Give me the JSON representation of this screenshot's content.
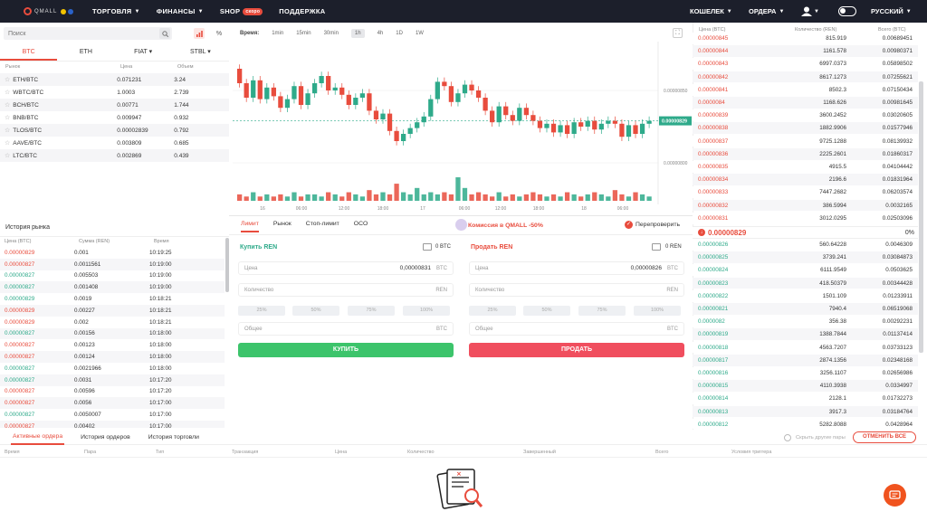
{
  "nav": {
    "logo_text": "QMALL",
    "items": [
      {
        "label": "ТОРГОВЛЯ",
        "caret": true
      },
      {
        "label": "ФИНАНСЫ",
        "caret": true
      },
      {
        "label": "SHOP",
        "badge": "скоро"
      },
      {
        "label": "ПОДДЕРЖКА"
      }
    ],
    "right": {
      "wallet": "КОШЕЛЕК",
      "orders": "ОРДЕРА",
      "language": "РУССКИЙ"
    }
  },
  "market": {
    "search_placeholder": "Поиск",
    "percent_label": "%",
    "tabs": [
      "BTC",
      "ETH",
      "FIAT ▾",
      "STBL ▾"
    ],
    "active_tab": 0,
    "headers": {
      "pair": "Рынок",
      "price": "Цена",
      "volume": "Объем"
    },
    "pairs": [
      {
        "pair": "ETH/BTC",
        "price": "0.071231",
        "volume": "3.24"
      },
      {
        "pair": "WBTC/BTC",
        "price": "1.0003",
        "volume": "2.739"
      },
      {
        "pair": "BCH/BTC",
        "price": "0.00771",
        "volume": "1.744"
      },
      {
        "pair": "BNB/BTC",
        "price": "0.009947",
        "volume": "0.932"
      },
      {
        "pair": "TLOS/BTC",
        "price": "0.00002839",
        "volume": "0.792"
      },
      {
        "pair": "AAVE/BTC",
        "price": "0.003809",
        "volume": "0.685"
      },
      {
        "pair": "LTC/BTC",
        "price": "0.002869",
        "volume": "0.439"
      }
    ]
  },
  "history": {
    "title": "История рынка",
    "headers": {
      "price": "Цена (BTC)",
      "amount": "Сумма (REN)",
      "time": "Время"
    },
    "rows": [
      {
        "price": "0.00000829",
        "amount": "0.001",
        "time": "10:19:25",
        "side": "sell"
      },
      {
        "price": "0.00000827",
        "amount": "0.0011561",
        "time": "10:19:00",
        "side": "sell"
      },
      {
        "price": "0.00000827",
        "amount": "0.005503",
        "time": "10:19:00",
        "side": "buy"
      },
      {
        "price": "0.00000827",
        "amount": "0.001408",
        "time": "10:19:00",
        "side": "buy"
      },
      {
        "price": "0.00000829",
        "amount": "0.0019",
        "time": "10:18:21",
        "side": "buy"
      },
      {
        "price": "0.00000829",
        "amount": "0.00227",
        "time": "10:18:21",
        "side": "sell"
      },
      {
        "price": "0.00000829",
        "amount": "0.002",
        "time": "10:18:21",
        "side": "sell"
      },
      {
        "price": "0.00000827",
        "amount": "0.00156",
        "time": "10:18:00",
        "side": "buy"
      },
      {
        "price": "0.00000827",
        "amount": "0.00123",
        "time": "10:18:00",
        "side": "sell"
      },
      {
        "price": "0.00000827",
        "amount": "0.00124",
        "time": "10:18:00",
        "side": "sell"
      },
      {
        "price": "0.00000827",
        "amount": "0.0021966",
        "time": "10:18:00",
        "side": "buy"
      },
      {
        "price": "0.00000827",
        "amount": "0.0031",
        "time": "10:17:20",
        "side": "buy"
      },
      {
        "price": "0.00000827",
        "amount": "0.00596",
        "time": "10:17:20",
        "side": "sell"
      },
      {
        "price": "0.00000827",
        "amount": "0.0056",
        "time": "10:17:00",
        "side": "sell"
      },
      {
        "price": "0.00000827",
        "amount": "0.0050007",
        "time": "10:17:00",
        "side": "buy"
      },
      {
        "price": "0.00000827",
        "amount": "0.00402",
        "time": "10:17:00",
        "side": "sell"
      }
    ]
  },
  "chart": {
    "time_label": "Время:",
    "intervals": [
      "1min",
      "15min",
      "30min",
      "1h",
      "4h",
      "1D",
      "1W"
    ],
    "selected_interval": "1h",
    "price_labels": [
      "0.00000850",
      "0.00000829",
      "0.00000800"
    ],
    "current_price_tag": "0.00000829",
    "x_labels": [
      "16",
      "06:00",
      "12:00",
      "18:00",
      "17",
      "06:00",
      "12:00",
      "18:00",
      "18",
      "06:00"
    ],
    "accent_up": "#2eaa8a",
    "accent_down": "#e84c3d"
  },
  "chart_data": {
    "type": "candlestick",
    "y_range": [
      7.9e-06,
      8.8e-06
    ],
    "candles": [
      [
        8.65,
        8.55
      ],
      [
        8.55,
        8.45
      ],
      [
        8.45,
        8.57
      ],
      [
        8.57,
        8.44
      ],
      [
        8.44,
        8.52
      ],
      [
        8.52,
        8.46
      ],
      [
        8.46,
        8.38
      ],
      [
        8.38,
        8.44
      ],
      [
        8.44,
        8.53
      ],
      [
        8.53,
        8.4
      ],
      [
        8.4,
        8.48
      ],
      [
        8.48,
        8.55
      ],
      [
        8.55,
        8.6
      ],
      [
        8.6,
        8.5
      ],
      [
        8.5,
        8.52
      ],
      [
        8.52,
        8.47
      ],
      [
        8.47,
        8.4
      ],
      [
        8.4,
        8.45
      ],
      [
        8.45,
        8.48
      ],
      [
        8.48,
        8.36
      ],
      [
        8.36,
        8.3
      ],
      [
        8.3,
        8.34
      ],
      [
        8.34,
        8.22
      ],
      [
        8.22,
        8.15
      ],
      [
        8.15,
        8.2
      ],
      [
        8.2,
        8.24
      ],
      [
        8.24,
        8.28
      ],
      [
        8.28,
        8.32
      ],
      [
        8.32,
        8.44
      ],
      [
        8.44,
        8.56
      ],
      [
        8.56,
        8.53
      ],
      [
        8.53,
        8.42
      ],
      [
        8.42,
        8.48
      ],
      [
        8.48,
        8.54
      ],
      [
        8.54,
        8.5
      ],
      [
        8.5,
        8.45
      ],
      [
        8.45,
        8.36
      ],
      [
        8.36,
        8.28
      ],
      [
        8.28,
        8.39
      ],
      [
        8.39,
        8.33
      ],
      [
        8.33,
        8.29
      ],
      [
        8.29,
        8.38
      ],
      [
        8.38,
        8.33
      ],
      [
        8.33,
        8.29
      ],
      [
        8.29,
        8.24
      ],
      [
        8.24,
        8.27
      ],
      [
        8.27,
        8.21
      ],
      [
        8.21,
        8.26
      ],
      [
        8.26,
        8.2
      ],
      [
        8.2,
        8.28
      ],
      [
        8.28,
        8.25
      ],
      [
        8.25,
        8.29
      ],
      [
        8.29,
        8.23
      ],
      [
        8.23,
        8.27
      ],
      [
        8.27,
        8.29
      ],
      [
        8.29,
        8.27
      ],
      [
        8.27,
        8.18
      ],
      [
        8.18,
        8.26
      ],
      [
        8.26,
        8.2
      ],
      [
        8.2,
        8.27
      ],
      [
        8.27,
        8.29
      ]
    ],
    "volumes": [
      3,
      2,
      4,
      2,
      3,
      2,
      3,
      2,
      4,
      2,
      3,
      3,
      2,
      4,
      3,
      2,
      4,
      3,
      2,
      5,
      3,
      4,
      3,
      8,
      4,
      3,
      6,
      3,
      4,
      3,
      4,
      3,
      11,
      6,
      3,
      4,
      3,
      2,
      4,
      2,
      3,
      2,
      3,
      4,
      3,
      2,
      3,
      2,
      4,
      3,
      2,
      3,
      4,
      3,
      2,
      5,
      3,
      2,
      4,
      3,
      2
    ]
  },
  "order_form": {
    "tabs": [
      "Лимит",
      "Рынок",
      "Стоп-лимит",
      "OCO"
    ],
    "active_tab": 0,
    "promo": "Комиссия в QMALL -50%",
    "recheck": "Перепроверить",
    "buy": {
      "title": "Купить REN",
      "balance": "0 BTC",
      "price_label": "Цена",
      "price_value": "0,00000831",
      "price_unit": "BTC",
      "qty_label": "Количество",
      "qty_unit": "REN",
      "total_label": "Общее",
      "total_unit": "BTC",
      "button": "КУПИТЬ"
    },
    "sell": {
      "title": "Продать REN",
      "balance": "0 REN",
      "price_label": "Цена",
      "price_value": "0,00000826",
      "price_unit": "BTC",
      "qty_label": "Количество",
      "qty_unit": "REN",
      "total_label": "Общее",
      "total_unit": "BTC",
      "button": "ПРОДАТЬ"
    },
    "percents": [
      "25%",
      "50%",
      "75%",
      "100%"
    ],
    "buy_color": "#3cc46b",
    "sell_color": "#f04e5e"
  },
  "orderbook": {
    "headers": {
      "price": "Цена (BTC)",
      "qty": "Количество (REN)",
      "total": "Всего (BTC)"
    },
    "asks": [
      {
        "price": "0.00000845",
        "qty": "815.919",
        "total": "0.00689451"
      },
      {
        "price": "0.00000844",
        "qty": "1161.578",
        "total": "0.00980371"
      },
      {
        "price": "0.00000843",
        "qty": "6997.0373",
        "total": "0.05898502"
      },
      {
        "price": "0.00000842",
        "qty": "8617.1273",
        "total": "0.07255621"
      },
      {
        "price": "0.00000841",
        "qty": "8502.3",
        "total": "0.07150434"
      },
      {
        "price": "0.0000084",
        "qty": "1168.626",
        "total": "0.00981645"
      },
      {
        "price": "0.00000839",
        "qty": "3600.2452",
        "total": "0.03020605"
      },
      {
        "price": "0.00000838",
        "qty": "1882.9906",
        "total": "0.01577946"
      },
      {
        "price": "0.00000837",
        "qty": "9725.1288",
        "total": "0.08139932"
      },
      {
        "price": "0.00000836",
        "qty": "2225.2601",
        "total": "0.01860317"
      },
      {
        "price": "0.00000835",
        "qty": "4915.5",
        "total": "0.04104442"
      },
      {
        "price": "0.00000834",
        "qty": "2196.6",
        "total": "0.01831964"
      },
      {
        "price": "0.00000833",
        "qty": "7447.2682",
        "total": "0.06203574"
      },
      {
        "price": "0.00000832",
        "qty": "386.5994",
        "total": "0.0032165"
      },
      {
        "price": "0.00000831",
        "qty": "3012.0295",
        "total": "0.02503096"
      }
    ],
    "last_price": "0.00000829",
    "change": "0%",
    "bids": [
      {
        "price": "0.00000826",
        "qty": "560.64228",
        "total": "0.0046309"
      },
      {
        "price": "0.00000825",
        "qty": "3739.241",
        "total": "0.03084873"
      },
      {
        "price": "0.00000824",
        "qty": "6111.9549",
        "total": "0.0503625"
      },
      {
        "price": "0.00000823",
        "qty": "418.50379",
        "total": "0.00344428"
      },
      {
        "price": "0.00000822",
        "qty": "1501.109",
        "total": "0.01233911"
      },
      {
        "price": "0.00000821",
        "qty": "7940.4",
        "total": "0.06519068"
      },
      {
        "price": "0.0000082",
        "qty": "356.38",
        "total": "0.00292231"
      },
      {
        "price": "0.00000819",
        "qty": "1388.7844",
        "total": "0.01137414"
      },
      {
        "price": "0.00000818",
        "qty": "4563.7207",
        "total": "0.03733123"
      },
      {
        "price": "0.00000817",
        "qty": "2874.1356",
        "total": "0.02348168"
      },
      {
        "price": "0.00000816",
        "qty": "3256.1107",
        "total": "0.02656986"
      },
      {
        "price": "0.00000815",
        "qty": "4110.3938",
        "total": "0.0334997"
      },
      {
        "price": "0.00000814",
        "qty": "2128.1",
        "total": "0.01732273"
      },
      {
        "price": "0.00000813",
        "qty": "3917.3",
        "total": "0.03184764"
      },
      {
        "price": "0.00000812",
        "qty": "5282.8088",
        "total": "0.0428964"
      }
    ]
  },
  "orders": {
    "tabs": [
      "Активные ордера",
      "История ордеров",
      "История торговли"
    ],
    "active_tab": 0,
    "hide_pairs": "Скрыть другие пары",
    "cancel_all": "ОТМЕНИТЬ ВСЕ",
    "columns": [
      "Время",
      "Пара",
      "Тип",
      "Транзакция",
      "Цена",
      "Количество",
      "Завершенный",
      "Всего",
      "Условия триггера"
    ]
  }
}
